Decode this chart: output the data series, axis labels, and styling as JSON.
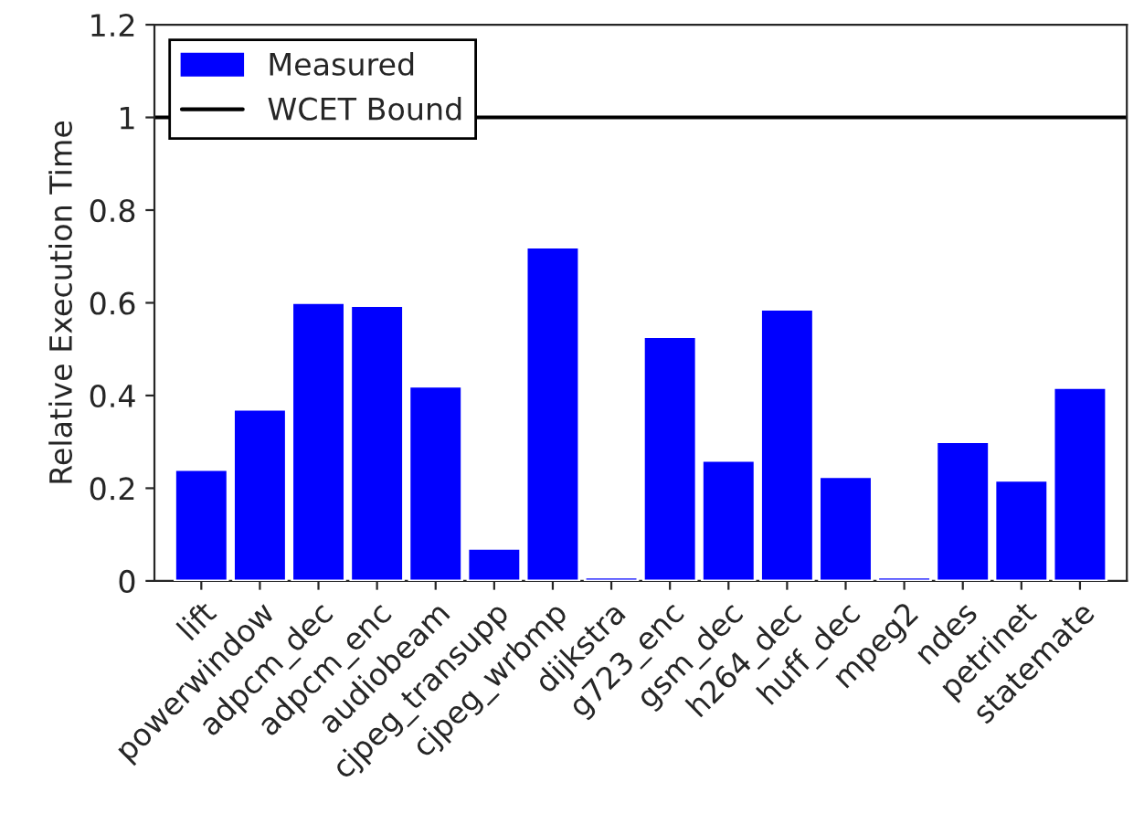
{
  "chart_data": {
    "type": "bar",
    "ylabel": "Relative Execution Time",
    "categories": [
      "lift",
      "powerwindow",
      "adpcm_dec",
      "adpcm_enc",
      "audiobeam",
      "cjpeg_transupp",
      "cjpeg_wrbmp",
      "dijkstra",
      "g723_enc",
      "gsm_dec",
      "h264_dec",
      "huff_dec",
      "mpeg2",
      "ndes",
      "petrinet",
      "statemate"
    ],
    "series": [
      {
        "name": "Measured",
        "color": "#0000ff",
        "values": [
          0.24,
          0.37,
          0.6,
          0.594,
          0.42,
          0.07,
          0.72,
          0.008,
          0.527,
          0.26,
          0.586,
          0.225,
          0.008,
          0.3,
          0.217,
          0.417
        ]
      }
    ],
    "ylim": [
      0,
      1.2
    ],
    "yticks": [
      0,
      0.2,
      0.4,
      0.6,
      0.8,
      1,
      1.2
    ],
    "ref_lines": [
      {
        "axis": "y",
        "value": 1,
        "label": "WCET Bound",
        "color": "#000000",
        "line_style": "solid"
      }
    ],
    "legend": "top left",
    "grid": false
  }
}
